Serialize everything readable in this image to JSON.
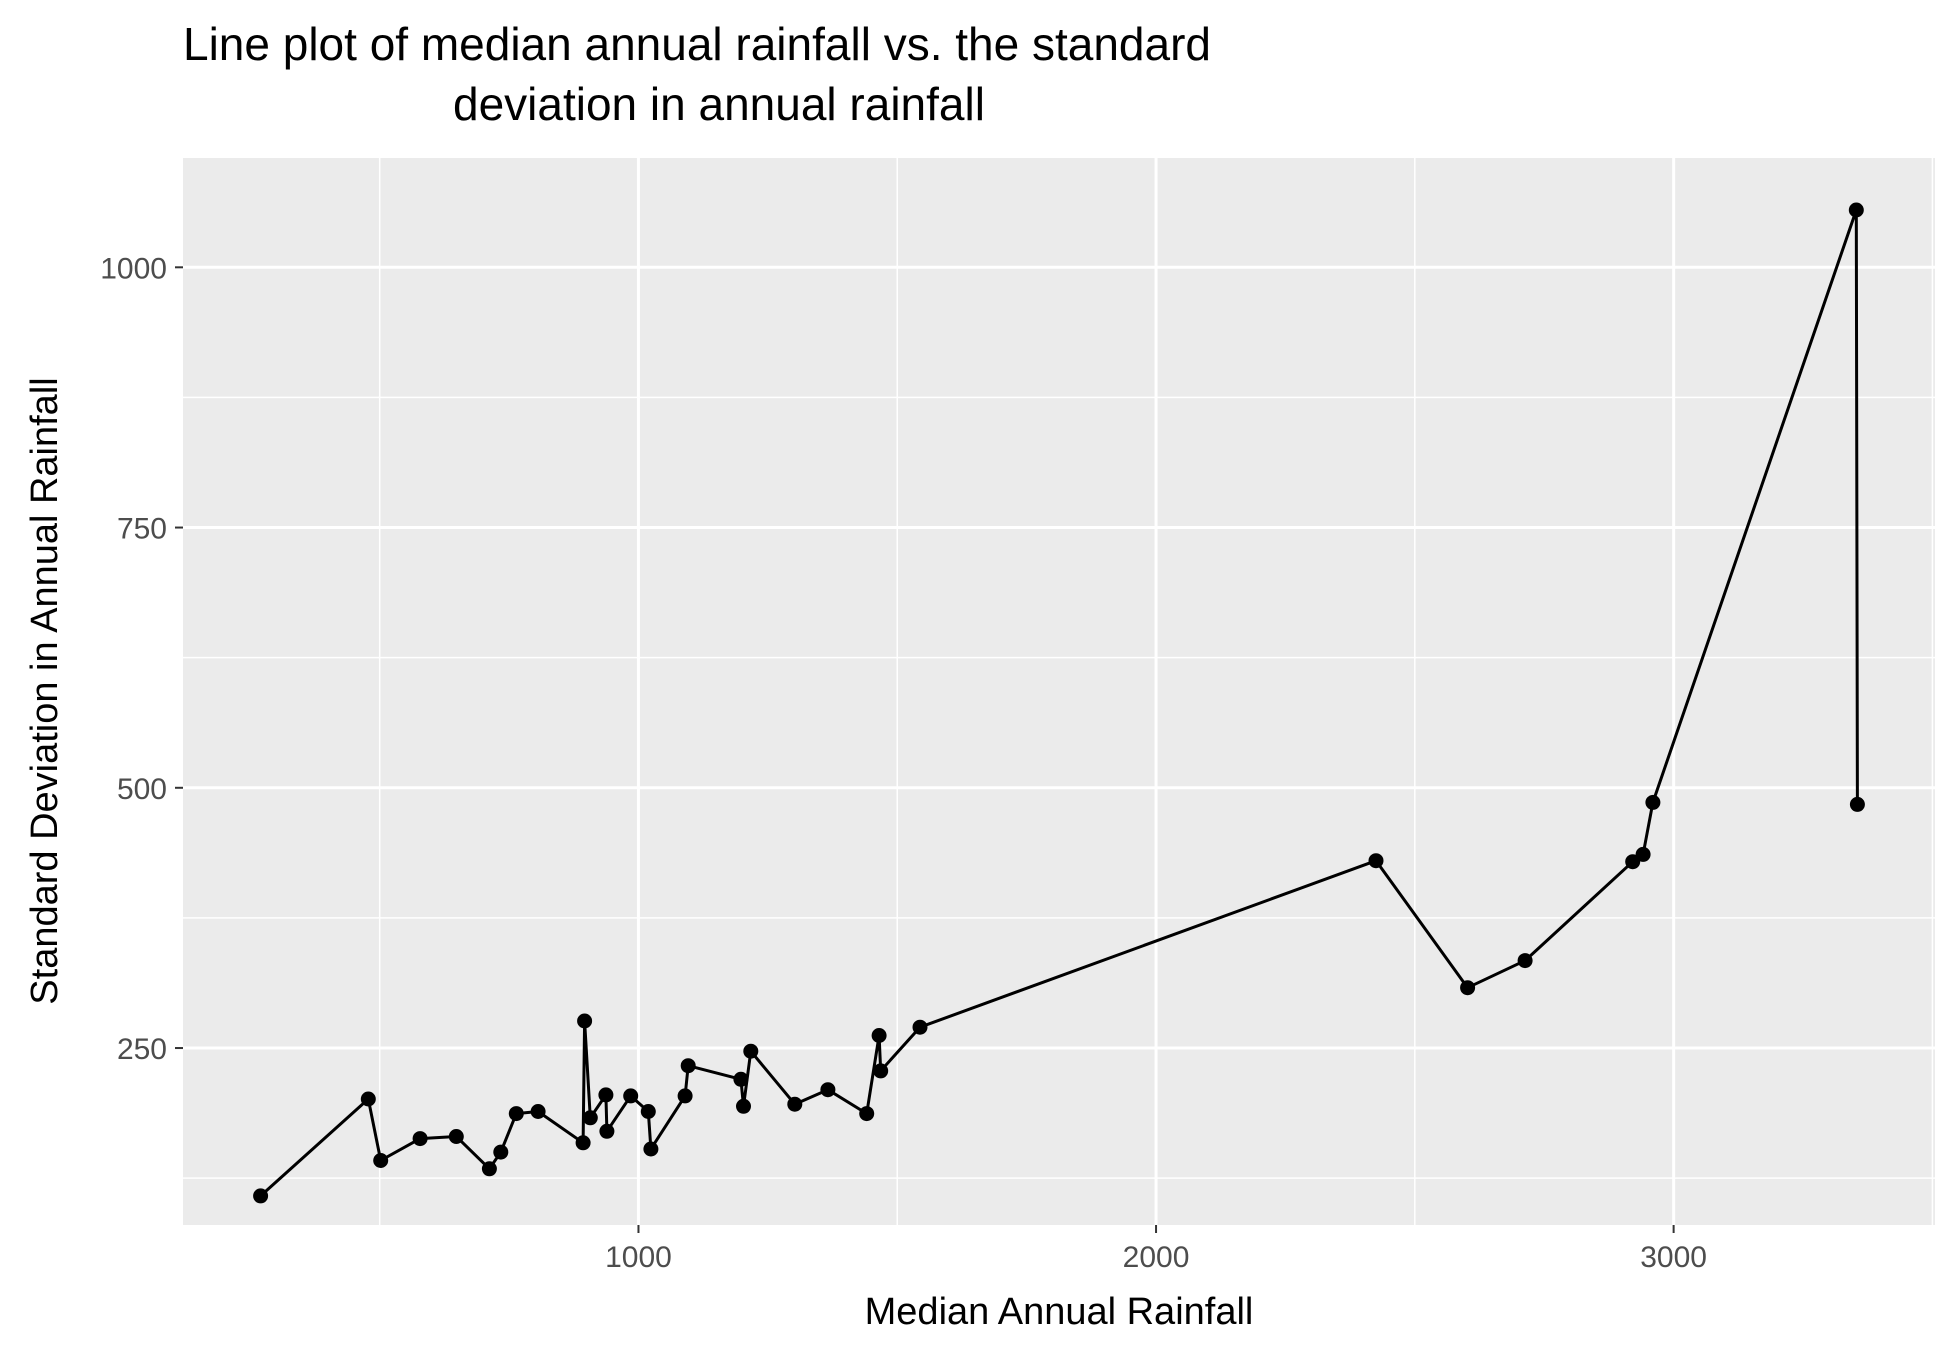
{
  "chart_data": {
    "type": "line",
    "title_lines": [
      "Line plot of median annual rainfall vs. the standard",
      "deviation in annual rainfall"
    ],
    "xlabel": "Median Annual Rainfall",
    "ylabel": "Standard Deviation in Annual Rainfall",
    "xlim": [
      120,
      3505
    ],
    "ylim": [
      80,
      1105
    ],
    "x_ticks": [
      1000,
      2000,
      3000
    ],
    "x_tick_labels": [
      "1000",
      "2000",
      "3000"
    ],
    "x_minor": [
      500,
      1500,
      2500,
      3500
    ],
    "y_ticks": [
      250,
      500,
      750,
      1000
    ],
    "y_tick_labels": [
      "250",
      "500",
      "750",
      "1000"
    ],
    "y_minor": [
      125,
      375,
      625,
      875
    ],
    "grid": true,
    "background": "#ebebeb",
    "grid_color": "#ffffff",
    "line_color": "#000000",
    "point_color": "#000000",
    "series": [
      {
        "points": [
          [
            270,
            108
          ],
          [
            478,
            201
          ],
          [
            502,
            142
          ],
          [
            578,
            163
          ],
          [
            648,
            165
          ],
          [
            712,
            134
          ],
          [
            734,
            150
          ],
          [
            764,
            187
          ],
          [
            806,
            189
          ],
          [
            893,
            159
          ],
          [
            896,
            276
          ],
          [
            907,
            183
          ],
          [
            937,
            205
          ],
          [
            939,
            170
          ],
          [
            985,
            204
          ],
          [
            1019,
            189
          ],
          [
            1024,
            153
          ],
          [
            1090,
            204
          ],
          [
            1096,
            233
          ],
          [
            1198,
            220
          ],
          [
            1203,
            194
          ],
          [
            1217,
            247
          ],
          [
            1302,
            196
          ],
          [
            1366,
            210
          ],
          [
            1441,
            187
          ],
          [
            1465,
            262
          ],
          [
            1468,
            228
          ],
          [
            1544,
            270
          ],
          [
            2425,
            430
          ],
          [
            2602,
            308
          ],
          [
            2713,
            334
          ],
          [
            2921,
            429
          ],
          [
            2941,
            436
          ],
          [
            2960,
            486
          ],
          [
            3353,
            1055
          ],
          [
            3355,
            484
          ]
        ]
      }
    ]
  }
}
